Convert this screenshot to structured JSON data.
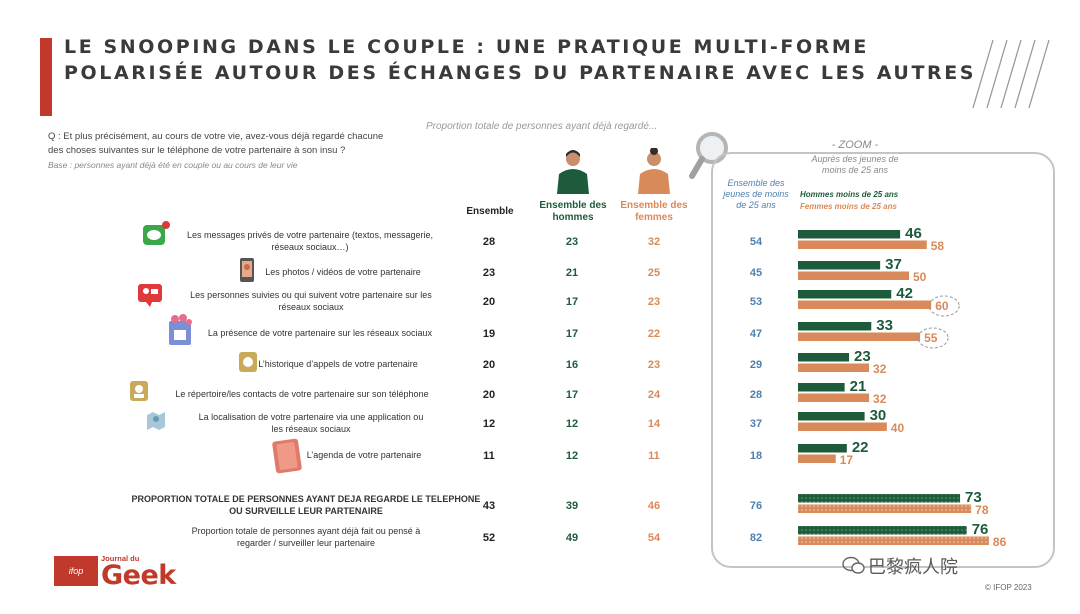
{
  "title": {
    "line1": "LE SNOOPING DANS LE COUPLE : UNE PRATIQUE MULTI-FORME",
    "line2": "POLARISÉE AUTOUR DES ÉCHANGES DU PARTENAIRE AVEC LES AUTRES"
  },
  "question": {
    "line1": "Q : Et plus précisément, au cours de votre vie, avez-vous déjà regardé chacune",
    "line2": "des choses suivantes sur le téléphone de votre partenaire à son insu ?",
    "base": "Base : personnes ayant déjà été en couple ou au cours de leur vie"
  },
  "proportion_caption": "Proportion totale de personnes ayant déjà regardé...",
  "columns": {
    "all": "Ensemble",
    "men": "Ensemble des hommes",
    "women": "Ensemble des femmes",
    "young": "Ensemble des jeunes de moins de 25 ans"
  },
  "zoom": {
    "title": "- ZOOM -",
    "subtitle": "Auprès des jeunes de moins de 25 ans",
    "legend_men": "Hommes moins de 25 ans",
    "legend_women": "Femmes moins de 25 ans"
  },
  "colors": {
    "accent": "#c0392b",
    "men": "#1e5b3a",
    "women": "#d98a5a",
    "young": "#4f7fb0"
  },
  "chart_data": {
    "type": "bar",
    "orientation": "horizontal",
    "categories": [
      "Les messages privés de votre partenaire (textos, messagerie, réseaux sociaux…)",
      "Les photos / vidéos de votre partenaire",
      "Les personnes suivies ou qui suivent votre partenaire sur les réseaux sociaux",
      "La présence de votre partenaire sur les réseaux sociaux",
      "L’historique d’appels de votre partenaire",
      "Le répertoire/les contacts de votre partenaire sur son téléphone",
      "La localisation de votre partenaire via une application ou les réseaux sociaux",
      "L’agenda de votre partenaire",
      "PROPORTION TOTALE DE PERSONNES AYANT DEJA REGARDE LE TELEPHONE OU SURVEILLE LEUR PARTENAIRE",
      "Proportion totale de personnes ayant déjà fait ou pensé à regarder / surveiller leur partenaire"
    ],
    "table": {
      "all": [
        28,
        23,
        20,
        19,
        20,
        20,
        12,
        11,
        43,
        52
      ],
      "men": [
        23,
        21,
        17,
        17,
        16,
        17,
        12,
        12,
        39,
        49
      ],
      "women": [
        32,
        25,
        23,
        22,
        23,
        24,
        14,
        11,
        46,
        54
      ],
      "young": [
        54,
        45,
        53,
        47,
        29,
        28,
        37,
        18,
        76,
        82
      ]
    },
    "series": [
      {
        "name": "Hommes moins de 25 ans",
        "values": [
          46,
          37,
          42,
          33,
          23,
          21,
          30,
          22,
          73,
          76
        ]
      },
      {
        "name": "Femmes moins de 25 ans",
        "values": [
          58,
          50,
          60,
          55,
          32,
          32,
          40,
          17,
          78,
          86
        ]
      }
    ],
    "highlighted": [
      {
        "category_index": 2,
        "series": 1
      },
      {
        "category_index": 3,
        "series": 1
      }
    ],
    "xlim": [
      0,
      100
    ]
  },
  "footer": {
    "ifop": "ifop",
    "journal_small": "Journal du",
    "journal_big": "Geek",
    "copyright": "© IFOP 2023",
    "watermark": "巴黎疯人院"
  }
}
